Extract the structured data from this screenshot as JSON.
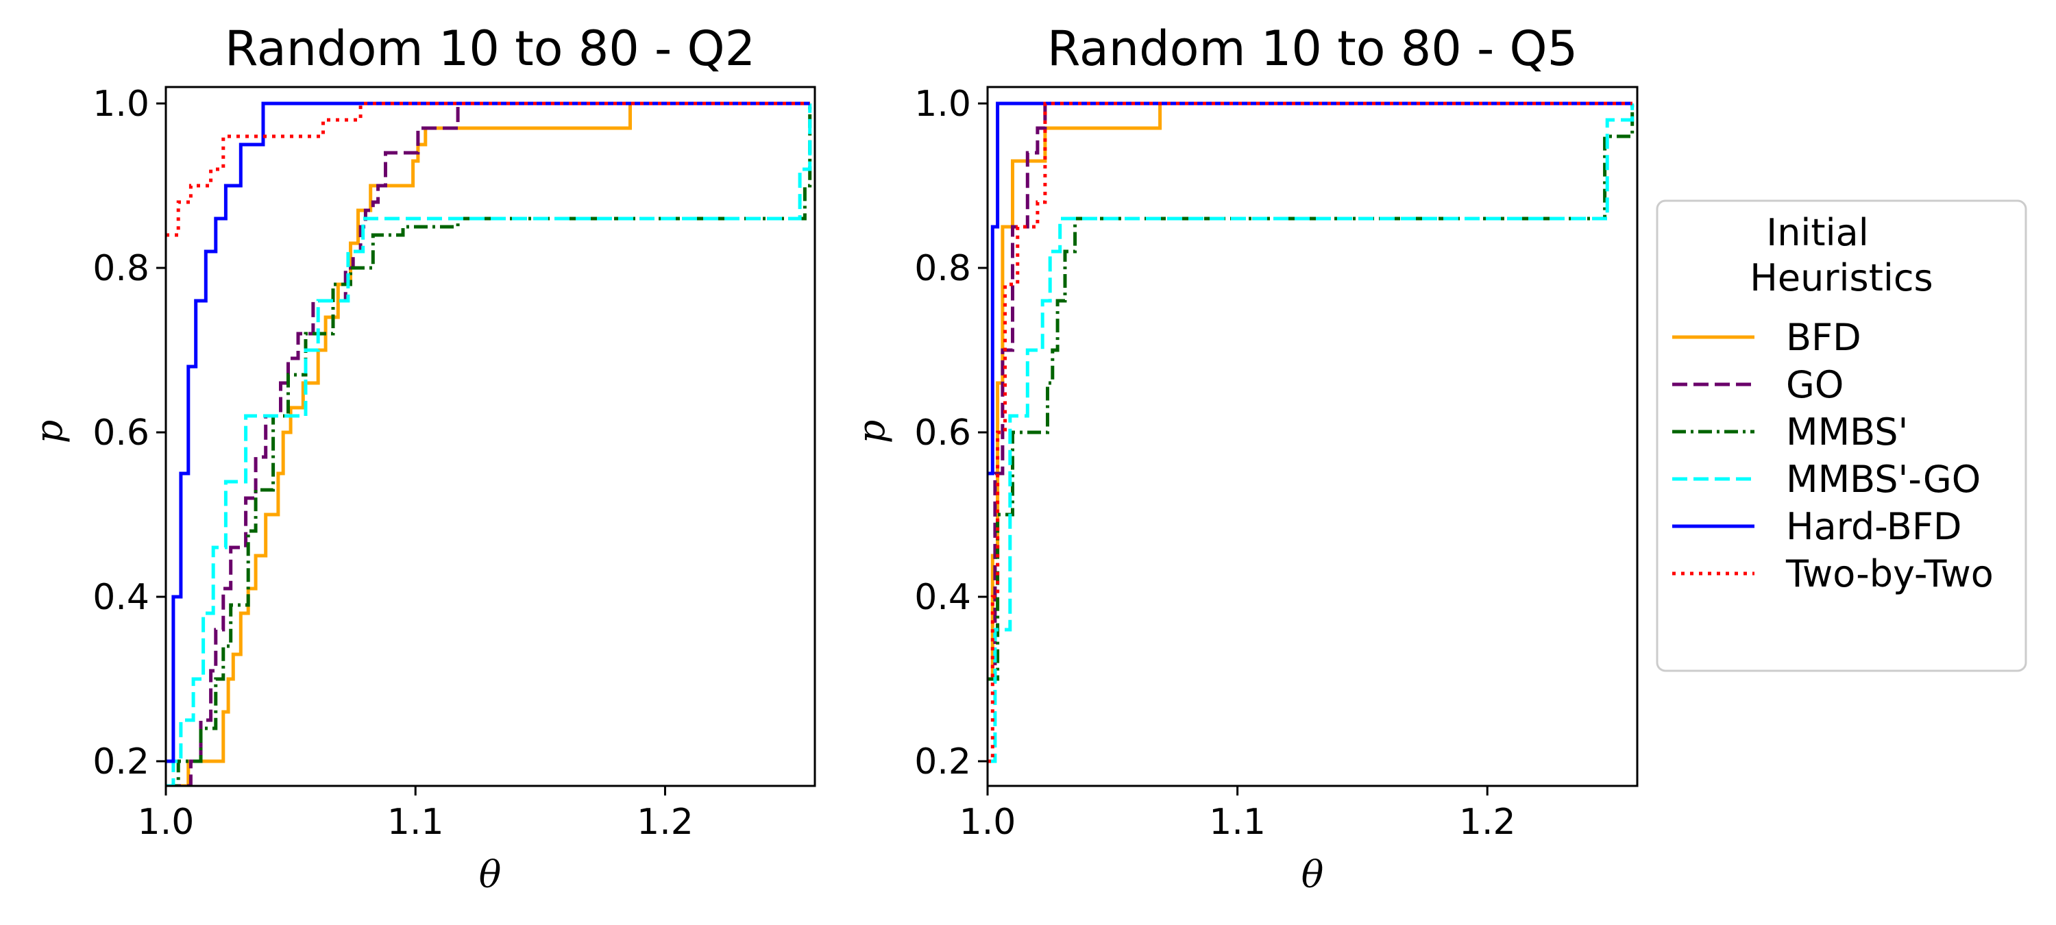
{
  "legend": {
    "title_line1": "Initial",
    "title_line2": "Heuristics",
    "entries": [
      {
        "label": "BFD",
        "color": "#ffa500",
        "dash": "solid"
      },
      {
        "label": "GO",
        "color": "#6a006a",
        "dash": "dashed"
      },
      {
        "label": "MMBS'",
        "color": "#006400",
        "dash": "dashdot"
      },
      {
        "label": "MMBS'-GO",
        "color": "#00ffff",
        "dash": "dashed"
      },
      {
        "label": "Hard-BFD",
        "color": "#0000ff",
        "dash": "solid"
      },
      {
        "label": "Two-by-Two",
        "color": "#ff0000",
        "dash": "dotted"
      }
    ]
  },
  "chart_data": [
    {
      "type": "line",
      "title": "Random 10 to 80 - Q2",
      "xlabel": "θ",
      "ylabel": "p",
      "xlim": [
        1.0,
        1.26
      ],
      "ylim": [
        0.17,
        1.02
      ],
      "xticks": [
        {
          "v": 1.0,
          "label": "1.0"
        },
        {
          "v": 1.1,
          "label": "1.1"
        },
        {
          "v": 1.2,
          "label": "1.2"
        }
      ],
      "yticks": [
        {
          "v": 0.2,
          "label": "0.2"
        },
        {
          "v": 0.4,
          "label": "0.4"
        },
        {
          "v": 0.6,
          "label": "0.6"
        },
        {
          "v": 0.8,
          "label": "0.8"
        },
        {
          "v": 1.0,
          "label": "1.0"
        }
      ],
      "series": [
        {
          "name": "BFD",
          "x": [
            1.0,
            1.009,
            1.023,
            1.025,
            1.027,
            1.03,
            1.033,
            1.036,
            1.04,
            1.045,
            1.047,
            1.05,
            1.055,
            1.061,
            1.064,
            1.069,
            1.074,
            1.077,
            1.082,
            1.099,
            1.101,
            1.104,
            1.143,
            1.185,
            1.186,
            1.258
          ],
          "y": [
            0.17,
            0.2,
            0.26,
            0.3,
            0.33,
            0.38,
            0.41,
            0.45,
            0.5,
            0.55,
            0.6,
            0.63,
            0.66,
            0.7,
            0.74,
            0.78,
            0.83,
            0.87,
            0.9,
            0.93,
            0.95,
            0.97,
            0.97,
            0.97,
            1.0,
            1.0
          ]
        },
        {
          "name": "GO",
          "x": [
            1.0,
            1.01,
            1.014,
            1.018,
            1.02,
            1.023,
            1.026,
            1.032,
            1.036,
            1.04,
            1.046,
            1.049,
            1.053,
            1.059,
            1.072,
            1.075,
            1.078,
            1.08,
            1.083,
            1.085,
            1.088,
            1.101,
            1.104,
            1.117,
            1.258
          ],
          "y": [
            0.17,
            0.2,
            0.25,
            0.31,
            0.36,
            0.41,
            0.46,
            0.52,
            0.57,
            0.62,
            0.66,
            0.69,
            0.72,
            0.76,
            0.8,
            0.82,
            0.85,
            0.87,
            0.88,
            0.9,
            0.94,
            0.97,
            0.97,
            1.0,
            1.0
          ]
        },
        {
          "name": "MMBS'",
          "x": [
            1.0,
            1.005,
            1.014,
            1.02,
            1.023,
            1.026,
            1.033,
            1.036,
            1.043,
            1.049,
            1.056,
            1.067,
            1.074,
            1.083,
            1.095,
            1.117,
            1.151,
            1.172,
            1.229,
            1.252,
            1.256,
            1.258
          ],
          "y": [
            0.17,
            0.2,
            0.24,
            0.3,
            0.34,
            0.39,
            0.48,
            0.53,
            0.62,
            0.67,
            0.72,
            0.78,
            0.8,
            0.84,
            0.85,
            0.86,
            0.86,
            0.86,
            0.86,
            0.86,
            0.9,
            1.0
          ]
        },
        {
          "name": "MMBS'-GO",
          "x": [
            1.0,
            1.003,
            1.006,
            1.011,
            1.015,
            1.019,
            1.024,
            1.032,
            1.056,
            1.061,
            1.073,
            1.079,
            1.094,
            1.121,
            1.147,
            1.188,
            1.226,
            1.25,
            1.254,
            1.258
          ],
          "y": [
            0.17,
            0.2,
            0.25,
            0.3,
            0.38,
            0.46,
            0.54,
            0.62,
            0.7,
            0.76,
            0.82,
            0.86,
            0.86,
            0.86,
            0.86,
            0.86,
            0.86,
            0.86,
            0.92,
            1.0
          ]
        },
        {
          "name": "Hard-BFD",
          "x": [
            1.0,
            1.003,
            1.006,
            1.009,
            1.012,
            1.016,
            1.02,
            1.024,
            1.03,
            1.039,
            1.258
          ],
          "y": [
            0.2,
            0.4,
            0.55,
            0.68,
            0.76,
            0.82,
            0.86,
            0.9,
            0.95,
            1.0,
            1.0
          ]
        },
        {
          "name": "Two-by-Two",
          "x": [
            1.0,
            1.005,
            1.01,
            1.018,
            1.023,
            1.063,
            1.078,
            1.258
          ],
          "y": [
            0.84,
            0.88,
            0.9,
            0.92,
            0.96,
            0.98,
            1.0,
            1.0
          ]
        }
      ]
    },
    {
      "type": "line",
      "title": "Random 10 to 80 - Q5",
      "xlabel": "θ",
      "ylabel": "p",
      "xlim": [
        1.0,
        1.26
      ],
      "ylim": [
        0.17,
        1.02
      ],
      "xticks": [
        {
          "v": 1.0,
          "label": "1.0"
        },
        {
          "v": 1.1,
          "label": "1.1"
        },
        {
          "v": 1.2,
          "label": "1.2"
        }
      ],
      "yticks": [
        {
          "v": 0.2,
          "label": "0.2"
        },
        {
          "v": 0.4,
          "label": "0.4"
        },
        {
          "v": 0.6,
          "label": "0.6"
        },
        {
          "v": 0.8,
          "label": "0.8"
        },
        {
          "v": 1.0,
          "label": "1.0"
        }
      ],
      "series": [
        {
          "name": "BFD",
          "x": [
            1.0,
            1.002,
            1.004,
            1.006,
            1.01,
            1.023,
            1.067,
            1.069,
            1.258
          ],
          "y": [
            0.3,
            0.45,
            0.66,
            0.85,
            0.93,
            0.97,
            0.97,
            1.0,
            1.0
          ]
        },
        {
          "name": "GO",
          "x": [
            1.0,
            1.003,
            1.006,
            1.01,
            1.016,
            1.02,
            1.023,
            1.258
          ],
          "y": [
            0.3,
            0.55,
            0.7,
            0.85,
            0.94,
            0.97,
            1.0,
            1.0
          ]
        },
        {
          "name": "MMBS'",
          "x": [
            1.0,
            1.004,
            1.01,
            1.024,
            1.026,
            1.028,
            1.031,
            1.035,
            1.1,
            1.2,
            1.245,
            1.247,
            1.258
          ],
          "y": [
            0.3,
            0.5,
            0.6,
            0.66,
            0.7,
            0.76,
            0.82,
            0.86,
            0.86,
            0.86,
            0.86,
            0.96,
            1.0
          ]
        },
        {
          "name": "MMBS'-GO",
          "x": [
            1.0,
            1.003,
            1.009,
            1.016,
            1.022,
            1.025,
            1.029,
            1.04,
            1.1,
            1.2,
            1.246,
            1.248,
            1.258
          ],
          "y": [
            0.2,
            0.36,
            0.62,
            0.7,
            0.76,
            0.82,
            0.86,
            0.86,
            0.86,
            0.86,
            0.86,
            0.98,
            1.0
          ]
        },
        {
          "name": "Hard-BFD",
          "x": [
            1.0,
            1.002,
            1.004,
            1.258
          ],
          "y": [
            0.55,
            0.85,
            1.0,
            1.0
          ]
        },
        {
          "name": "Two-by-Two",
          "x": [
            1.0,
            1.002,
            1.004,
            1.007,
            1.012,
            1.02,
            1.023,
            1.258
          ],
          "y": [
            0.2,
            0.4,
            0.6,
            0.78,
            0.85,
            0.88,
            1.0,
            1.0
          ]
        }
      ]
    }
  ]
}
